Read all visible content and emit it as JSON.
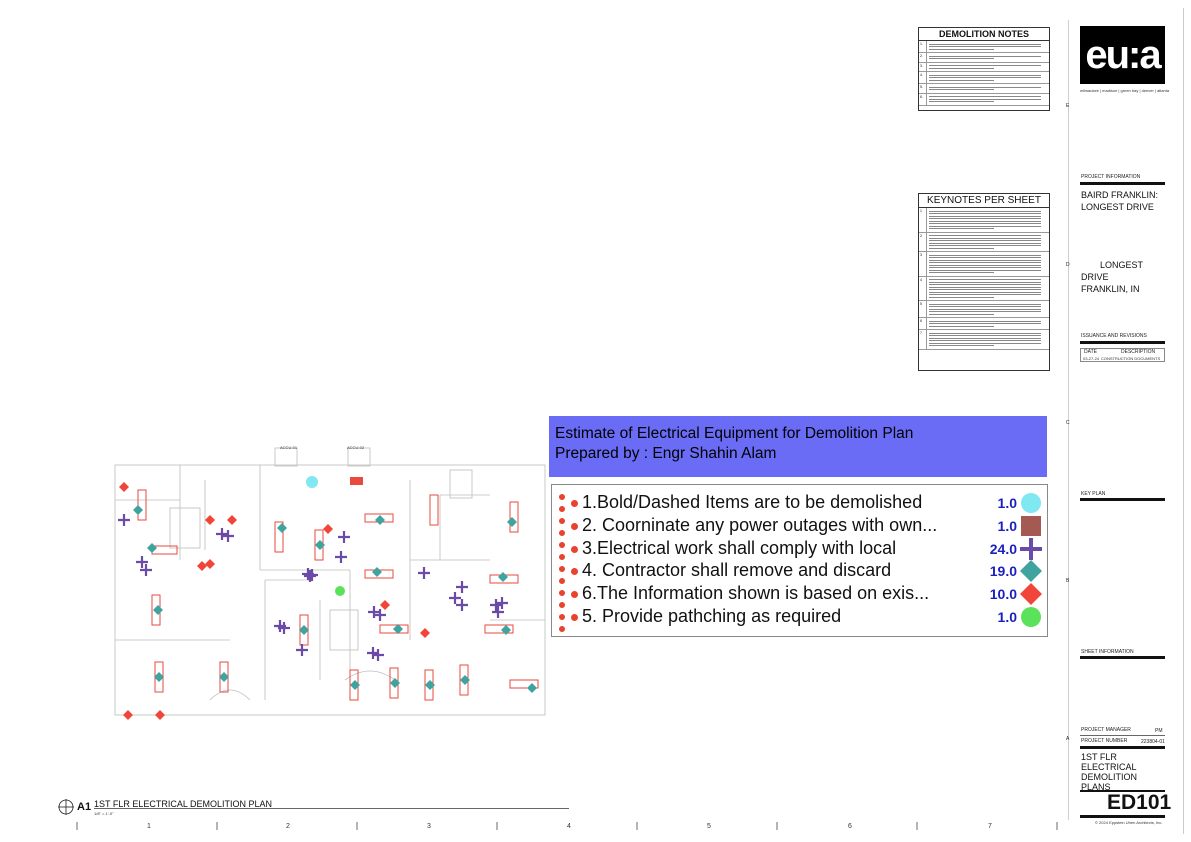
{
  "demolition_notes": {
    "title": "DEMOLITION NOTES",
    "numbers": [
      "1.",
      "2.",
      "3.",
      "4.",
      "5.",
      "6."
    ]
  },
  "keynotes": {
    "title": "KEYNOTES PER SHEET",
    "numbers": [
      "1",
      "2",
      "3",
      "4",
      "5",
      "6",
      "7"
    ]
  },
  "firm": {
    "logo": "eu:a",
    "offices": "milwaukee | madison | green bay | denver | atlanta"
  },
  "title_block": {
    "project_info_label": "PROJECT INFORMATION",
    "project_name": "BAIRD FRANKLIN: LONGEST DRIVE",
    "address_line1": "LONGEST",
    "address_line2": "DRIVE",
    "address_line3": "FRANKLIN, IN",
    "issuance_label": "ISSUANCE AND REVISIONS",
    "date_col": "DATE",
    "desc_col": "DESCRIPTION",
    "issue_date": "03-27-24",
    "issue_desc": "CONSTRUCTION DOCUMENTS",
    "key_plan_label": "KEY PLAN",
    "sheet_info_label": "SHEET INFORMATION",
    "project_manager_label": "PROJECT MANAGER",
    "project_manager_value": "PM",
    "project_number_label": "PROJECT NUMBER",
    "project_number_value": "223804-01",
    "sheet_title": "1ST FLR ELECTRICAL DEMOLITION PLANS",
    "sheet_number": "ED101",
    "copyright": "© 2024 Eppstein Uhen Architects, Inc."
  },
  "row_letters": [
    "E",
    "D",
    "C",
    "B",
    "A"
  ],
  "column_numbers": [
    "1",
    "2",
    "3",
    "4",
    "5",
    "6",
    "7"
  ],
  "plan": {
    "label": "A1",
    "title": "1ST FLR ELECTRICAL DEMOLITION PLAN",
    "scale": "1/8\" = 1'-0\"",
    "unit_tags": [
      "ACCU-01",
      "ACCU-02"
    ]
  },
  "legend": {
    "title": "Estimate of Electrical Equipment for Demolition Plan",
    "prepared_by": "Prepared by : Engr Shahin Alam",
    "items": [
      {
        "label": "1.Bold/Dashed Items are to be demolished",
        "count": "1.0",
        "symbol": "circle-cyan",
        "color": "#7fe8f0"
      },
      {
        "label": "2. Coorninate any power outages with own...",
        "count": "1.0",
        "symbol": "square-brown",
        "color": "#a45a52"
      },
      {
        "label": "3.Electrical work shall comply with local",
        "count": "24.0",
        "symbol": "cross-purple",
        "color": "#6b4ba8"
      },
      {
        "label": "4. Contractor shall remove and discard",
        "count": "19.0",
        "symbol": "diamond-teal",
        "color": "#3fa3a0"
      },
      {
        "label": "6.The Information shown is based on exis...",
        "count": "10.0",
        "symbol": "diamond-red",
        "color": "#f2453a"
      },
      {
        "label": "5. Provide pathching as required",
        "count": "1.0",
        "symbol": "circle-green",
        "color": "#5ae35a"
      }
    ]
  }
}
